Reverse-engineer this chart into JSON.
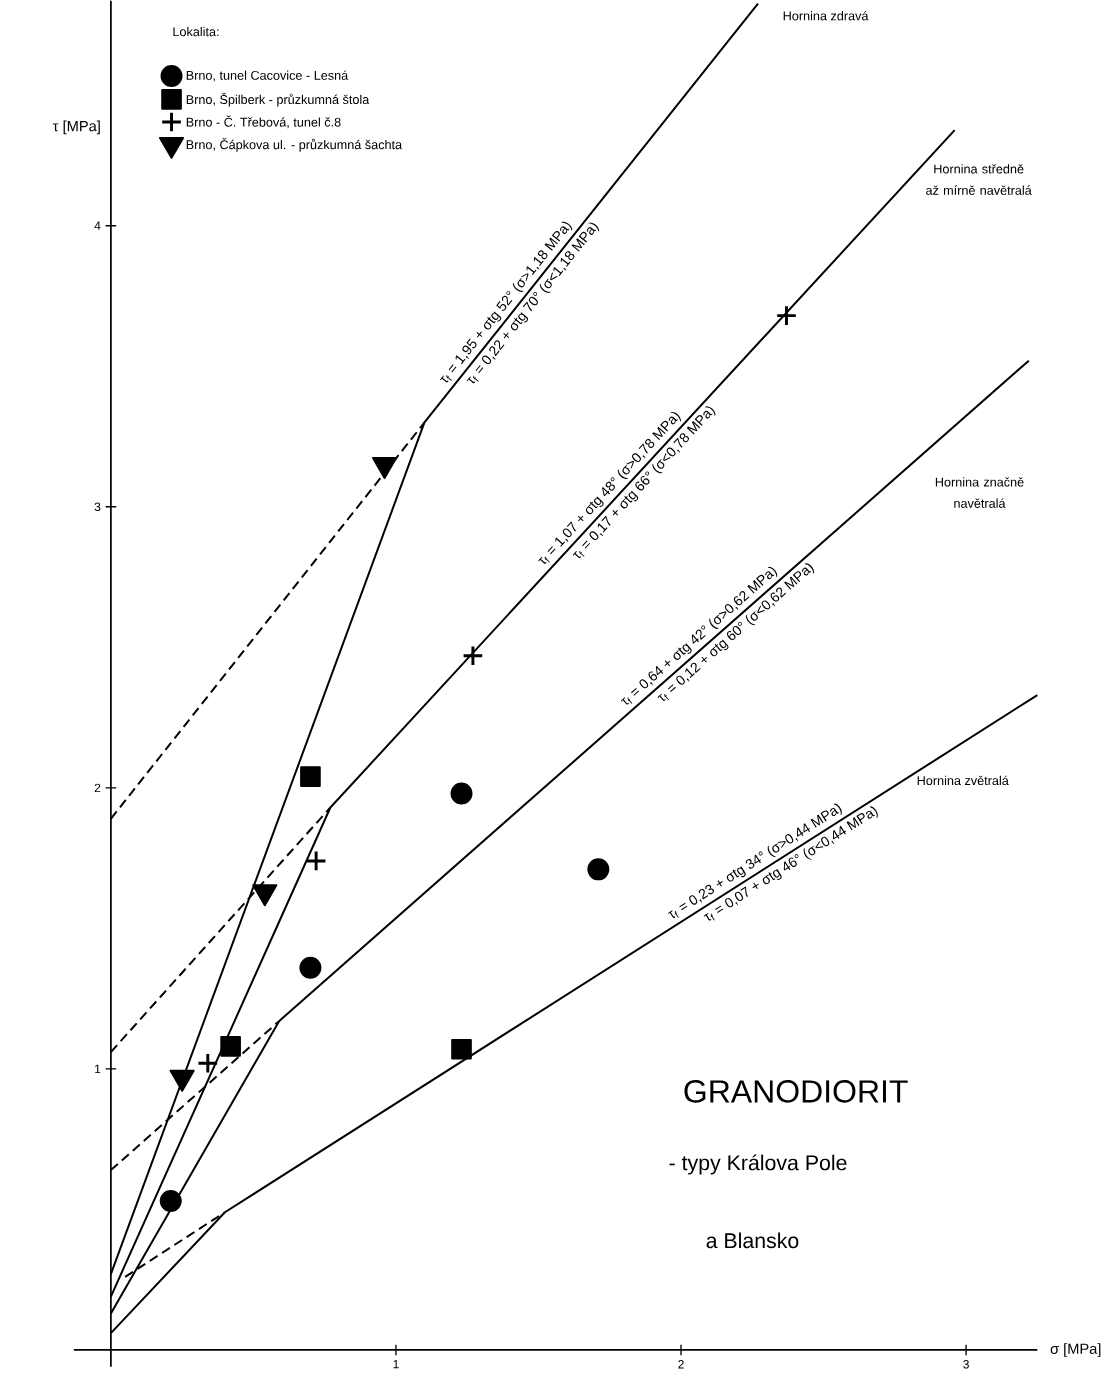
{
  "chart_data": {
    "type": "line",
    "xlabel": "σ [MPa]",
    "ylabel": "τ [MPa]",
    "xlim": [
      -0.13,
      3.25
    ],
    "ylim": [
      -0.06,
      4.8
    ],
    "xticks": [
      1,
      2,
      3
    ],
    "yticks": [
      1,
      2,
      3,
      4
    ],
    "legend": "top left",
    "legend_title": "Lokalita:",
    "series": [
      {
        "name": "Hornina zdravá",
        "color": "#000000",
        "line_style": "solid",
        "marker": "none",
        "x": [
          0,
          1.1,
          2.27
        ],
        "values": [
          0.27,
          3.3,
          4.79
        ]
      },
      {
        "name": "Hornina středně až mírně navětralá",
        "color": "#000000",
        "line_style": "solid",
        "marker": "none",
        "x": [
          0,
          0.77,
          2.96
        ],
        "values": [
          0.19,
          1.93,
          4.34
        ]
      },
      {
        "name": "Hornina značně navětralá",
        "color": "#000000",
        "line_style": "solid",
        "marker": "none",
        "x": [
          0,
          0.59,
          3.22
        ],
        "values": [
          0.13,
          1.17,
          3.52
        ]
      },
      {
        "name": "Hornina zvětralá",
        "color": "#000000",
        "line_style": "solid",
        "marker": "none",
        "x": [
          0,
          0.4,
          3.25
        ],
        "values": [
          0.06,
          0.49,
          2.33
        ]
      },
      {
        "color": "#000000",
        "line_style": "dashed",
        "marker": "none",
        "x": [
          0,
          1.1
        ],
        "values": [
          1.89,
          3.3
        ]
      },
      {
        "color": "#000000",
        "line_style": "dashed",
        "marker": "none",
        "x": [
          0,
          0.77
        ],
        "values": [
          1.06,
          1.93
        ]
      },
      {
        "color": "#000000",
        "line_style": "dashed",
        "marker": "none",
        "x": [
          0,
          0.59
        ],
        "values": [
          0.64,
          1.17
        ]
      },
      {
        "color": "#000000",
        "line_style": "dashed",
        "marker": "none",
        "x": [
          0.05,
          0.4
        ],
        "values": [
          0.26,
          0.49
        ]
      },
      {
        "name": "Brno, tunel Cacovice - Lesná",
        "type": "scatter",
        "color": "#000000",
        "marker": "circle",
        "x": [
          0.21,
          0.7,
          1.23,
          1.71
        ],
        "values": [
          0.53,
          1.36,
          1.98,
          1.71
        ]
      },
      {
        "name": "Brno, Špilberk - průzkumná štola",
        "type": "scatter",
        "color": "#000000",
        "marker": "square",
        "x": [
          0.42,
          0.7,
          1.23
        ],
        "values": [
          1.08,
          2.04,
          1.07
        ]
      },
      {
        "name": "Brno - Č. Třebová, tunel č.8",
        "type": "scatter",
        "color": "#000000",
        "marker": "cross",
        "x": [
          0.34,
          0.72,
          1.27,
          2.37
        ],
        "values": [
          1.02,
          1.74,
          2.47,
          3.68
        ]
      },
      {
        "name": "Brno, Čápkova ul. - průzkumná šachta",
        "type": "scatter",
        "color": "#000000",
        "marker": "triangle",
        "x": [
          0.25,
          0.54,
          0.96
        ],
        "values": [
          0.97,
          1.63,
          3.15
        ]
      }
    ],
    "annotations": [
      "τ$_{f}$ = 1,95 + σtg 52° (σ>1,18 MPa)",
      "τ$_{f}$ = 0,22 + σtg 70° (σ<1,18 MPa)",
      "τ$_{f}$ = 1,07 + σtg 48° (σ>0,78 MPa)",
      "τ$_{f}$ = 0,17 + σtg 66° (σ<0,78 MPa)",
      "τ$_{f}$ = 0,64 + σtg 42° (σ>0,62 MPa)",
      "τ$_{f}$ = 0,12 + σtg 60° (σ<0,62 MPa)",
      "τ$_{f}$ = 0,23 + σtg 34° (σ>0,44 MPa)",
      "τ$_{f}$ = 0,07 + σtg 46° (σ<0,44 MPa)",
      "GRANODIORIT",
      "- typy  Králova Pole",
      "a Blansko"
    ]
  }
}
